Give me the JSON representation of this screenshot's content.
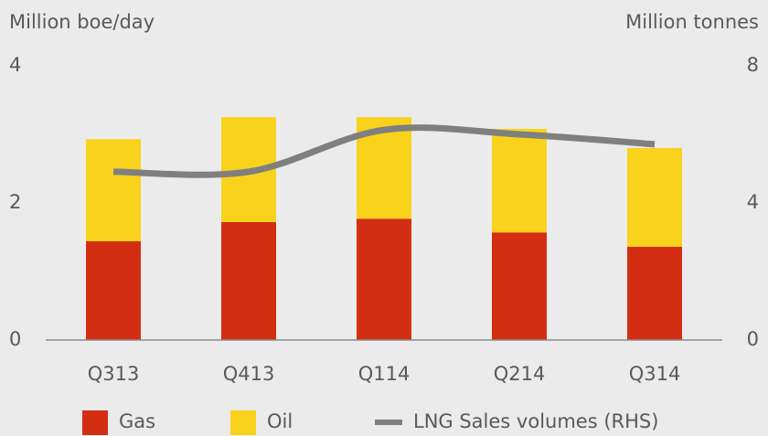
{
  "chart_data": {
    "type": "bar",
    "stacked": true,
    "y_label": "Million boe/day",
    "y2_label": "Million tonnes",
    "categories": [
      "Q313",
      "Q413",
      "Q114",
      "Q214",
      "Q314"
    ],
    "series": [
      {
        "name": "Gas",
        "type": "bar",
        "color": "#d42e12",
        "values": [
          1.44,
          1.72,
          1.77,
          1.57,
          1.36
        ]
      },
      {
        "name": "Oil",
        "type": "bar",
        "color": "#f9d21c",
        "values": [
          1.49,
          1.53,
          1.48,
          1.51,
          1.44
        ]
      },
      {
        "name": "LNG Sales volumes (RHS)",
        "type": "line",
        "axis": "y2",
        "color": "#7f7f7f",
        "values": [
          4.91,
          4.91,
          6.13,
          6.0,
          5.71
        ]
      }
    ],
    "ylim": [
      0,
      4
    ],
    "yticks": [
      0,
      2,
      4
    ],
    "y2lim": [
      0,
      8
    ],
    "y2ticks": [
      0,
      4,
      8
    ],
    "grid": false,
    "legend": "bottom"
  }
}
